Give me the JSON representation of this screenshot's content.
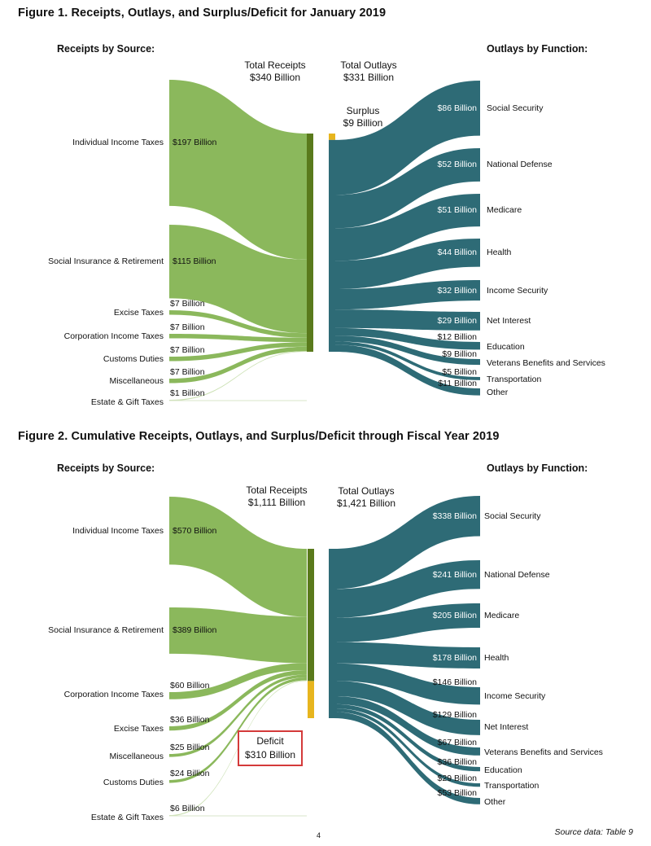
{
  "colors": {
    "receipts": "#8bb85c",
    "receipts_bar": "#5a7a1c",
    "outlays": "#2e6b76",
    "surplus": "#e7b51e"
  },
  "footer": {
    "page": "4",
    "source": "Source data: Table 9"
  },
  "chart_data": [
    {
      "type": "sankey",
      "title": "Figure 1. Receipts, Outlays, and Surplus/Deficit for January 2019",
      "receipts_heading": "Receipts by Source:",
      "outlays_heading": "Outlays by Function:",
      "total_receipts_label": "Total Receipts",
      "total_receipts_value": "$340 Billion",
      "total_outlays_label": "Total Outlays",
      "total_outlays_value": "$331 Billion",
      "balance_label": "Surplus",
      "balance_value": "$9 Billion",
      "units": "billions of dollars",
      "receipts": [
        {
          "name": "Individual Income Taxes",
          "value": 197,
          "label": "$197 Billion"
        },
        {
          "name": "Social Insurance & Retirement",
          "value": 115,
          "label": "$115 Billion"
        },
        {
          "name": "Excise Taxes",
          "value": 7,
          "label": "$7 Billion"
        },
        {
          "name": "Corporation Income Taxes",
          "value": 7,
          "label": "$7 Billion"
        },
        {
          "name": "Customs Duties",
          "value": 7,
          "label": "$7 Billion"
        },
        {
          "name": "Miscellaneous",
          "value": 7,
          "label": "$7 Billion"
        },
        {
          "name": "Estate & Gift Taxes",
          "value": 1,
          "label": "$1 Billion"
        }
      ],
      "outlays": [
        {
          "name": "Social Security",
          "value": 86,
          "label": "$86 Billion"
        },
        {
          "name": "National Defense",
          "value": 52,
          "label": "$52 Billion"
        },
        {
          "name": "Medicare",
          "value": 51,
          "label": "$51 Billion"
        },
        {
          "name": "Health",
          "value": 44,
          "label": "$44 Billion"
        },
        {
          "name": "Income Security",
          "value": 32,
          "label": "$32 Billion"
        },
        {
          "name": "Net Interest",
          "value": 29,
          "label": "$29 Billion"
        },
        {
          "name": "Education",
          "value": 12,
          "label": "$12 Billion"
        },
        {
          "name": "Veterans Benefits and Services",
          "value": 9,
          "label": "$9 Billion"
        },
        {
          "name": "Transportation",
          "value": 5,
          "label": "$5 Billion"
        },
        {
          "name": "Other",
          "value": 11,
          "label": "$11 Billion"
        }
      ]
    },
    {
      "type": "sankey",
      "title": "Figure 2. Cumulative Receipts, Outlays, and Surplus/Deficit through Fiscal Year 2019",
      "receipts_heading": "Receipts by Source:",
      "outlays_heading": "Outlays by Function:",
      "total_receipts_label": "Total Receipts",
      "total_receipts_value": "$1,111 Billion",
      "total_outlays_label": "Total Outlays",
      "total_outlays_value": "$1,421 Billion",
      "balance_label": "Deficit",
      "balance_value": "$310 Billion",
      "units": "billions of dollars",
      "receipts": [
        {
          "name": "Individual Income Taxes",
          "value": 570,
          "label": "$570 Billion"
        },
        {
          "name": "Social Insurance & Retirement",
          "value": 389,
          "label": "$389 Billion"
        },
        {
          "name": "Corporation Income Taxes",
          "value": 60,
          "label": "$60 Billion"
        },
        {
          "name": "Excise Taxes",
          "value": 36,
          "label": "$36 Billion"
        },
        {
          "name": "Miscellaneous",
          "value": 25,
          "label": "$25 Billion"
        },
        {
          "name": "Customs Duties",
          "value": 24,
          "label": "$24 Billion"
        },
        {
          "name": "Estate & Gift Taxes",
          "value": 6,
          "label": "$6 Billion"
        }
      ],
      "outlays": [
        {
          "name": "Social Security",
          "value": 338,
          "label": "$338 Billion"
        },
        {
          "name": "National Defense",
          "value": 241,
          "label": "$241 Billion"
        },
        {
          "name": "Medicare",
          "value": 205,
          "label": "$205 Billion"
        },
        {
          "name": "Health",
          "value": 178,
          "label": "$178 Billion"
        },
        {
          "name": "Income Security",
          "value": 146,
          "label": "$146 Billion"
        },
        {
          "name": "Net Interest",
          "value": 129,
          "label": "$129 Billion"
        },
        {
          "name": "Veterans Benefits and Services",
          "value": 67,
          "label": "$67 Billion"
        },
        {
          "name": "Education",
          "value": 36,
          "label": "$36 Billion"
        },
        {
          "name": "Transportation",
          "value": 29,
          "label": "$29 Billion"
        },
        {
          "name": "Other",
          "value": 53,
          "label": "$53 Billion"
        }
      ]
    }
  ]
}
